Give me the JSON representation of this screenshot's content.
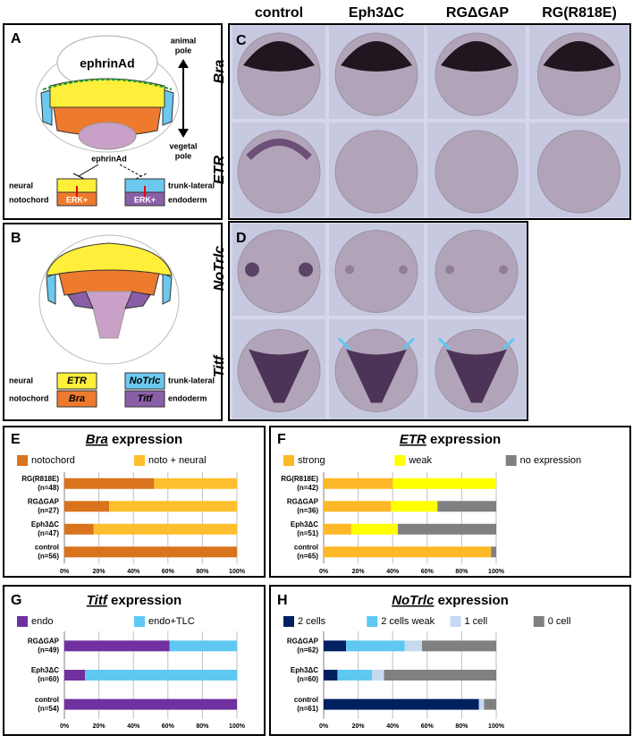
{
  "panel_labels": [
    "A",
    "B",
    "C",
    "D"
  ],
  "panel_a": {
    "ephrin_label": "ephrinAd",
    "animal_pole": [
      "animal",
      "pole"
    ],
    "vegetal_pole": [
      "vegetal",
      "pole"
    ],
    "inhibitor": "ephrinAd",
    "neural": "neural",
    "trunk_lateral": "trunk-lateral",
    "notochord": "notochord",
    "endoderm": "endoderm",
    "erk": [
      "ERK+",
      "ERK+"
    ]
  },
  "panel_b": {
    "genes": [
      "ETR",
      "NoTrlc",
      "Bra",
      "Titf"
    ],
    "neural": "neural",
    "trunk_lateral": "trunk-lateral",
    "notochord": "notochord",
    "endoderm": "endoderm"
  },
  "photos": {
    "columns": [
      "control",
      "Eph3ΔC",
      "RGΔGAP",
      "RG(R818E)"
    ],
    "rows": [
      "Bra",
      "ETR",
      "NoTrlc",
      "Titf"
    ]
  },
  "chart_data": [
    {
      "type": "bar",
      "panel": "E",
      "title_gene": "Bra",
      "title_suffix": " expression",
      "categories": [
        "RG(R818E)",
        "RGΔGAP",
        "Eph3ΔC",
        "control"
      ],
      "category_counts": [
        "(n=48)",
        "(n=27)",
        "(n=47)",
        "(n=56)"
      ],
      "series": [
        {
          "name": "notochord",
          "color": "#d9731c",
          "values": [
            52,
            26,
            17,
            100
          ]
        },
        {
          "name": "noto + neural",
          "color": "#fdbf2d",
          "values": [
            48,
            74,
            83,
            0
          ]
        }
      ],
      "xlim": [
        0,
        100
      ],
      "xticks": [
        {
          "value": 0,
          "label": "0%"
        },
        {
          "value": 20,
          "label": "20%"
        },
        {
          "value": 40,
          "label": "40%"
        },
        {
          "value": 60,
          "label": "60%"
        },
        {
          "value": 80,
          "label": "80%"
        },
        {
          "value": 100,
          "label": "100%"
        }
      ],
      "grid": true,
      "stacked": true
    },
    {
      "type": "bar",
      "panel": "F",
      "title_gene": "ETR",
      "title_suffix": " expression",
      "categories": [
        "RG(R818E)",
        "RGΔGAP",
        "Eph3ΔC",
        "control"
      ],
      "category_counts": [
        "(n=42)",
        "(n=36)",
        "(n=51)",
        "(n=65)"
      ],
      "series": [
        {
          "name": "strong",
          "color": "#fdb827",
          "values": [
            40,
            39,
            16,
            97
          ]
        },
        {
          "name": "weak",
          "color": "#ffff00",
          "values": [
            60,
            27,
            27,
            0
          ]
        },
        {
          "name": "no expression",
          "color": "#808080",
          "values": [
            0,
            34,
            57,
            3
          ]
        }
      ],
      "xlim": [
        0,
        100
      ],
      "xticks": [
        {
          "value": 0,
          "label": "0%"
        },
        {
          "value": 20,
          "label": "20%"
        },
        {
          "value": 40,
          "label": "40%"
        },
        {
          "value": 60,
          "label": "60%"
        },
        {
          "value": 80,
          "label": "80%"
        },
        {
          "value": 100,
          "label": "100%"
        }
      ],
      "grid": true,
      "stacked": true
    },
    {
      "type": "bar",
      "panel": "G",
      "title_gene": "Titf",
      "title_suffix": " expression",
      "categories": [
        "RGΔGAP",
        "Eph3ΔC",
        "control"
      ],
      "category_counts": [
        "(n=49)",
        "(n=60)",
        "(n=54)"
      ],
      "series": [
        {
          "name": "endo",
          "color": "#7030a0",
          "values": [
            61,
            12,
            100
          ]
        },
        {
          "name": "endo+TLC",
          "color": "#5ec8f2",
          "values": [
            39,
            88,
            0
          ]
        }
      ],
      "xlim": [
        0,
        100
      ],
      "xticks": [
        {
          "value": 0,
          "label": "0%"
        },
        {
          "value": 20,
          "label": "20%"
        },
        {
          "value": 40,
          "label": "40%"
        },
        {
          "value": 60,
          "label": "60%"
        },
        {
          "value": 80,
          "label": "80%"
        },
        {
          "value": 100,
          "label": "100%"
        }
      ],
      "grid": true,
      "stacked": true
    },
    {
      "type": "bar",
      "panel": "H",
      "title_gene": "NoTrlc",
      "title_suffix": " expression",
      "categories": [
        "RGΔGAP",
        "Eph3ΔC",
        "control"
      ],
      "category_counts": [
        "(n=62)",
        "(n=60)",
        "(n=61)"
      ],
      "series": [
        {
          "name": "2 cells",
          "color": "#002060",
          "values": [
            13,
            8,
            90
          ]
        },
        {
          "name": "2 cells weak",
          "color": "#5ec8f2",
          "values": [
            34,
            20,
            0
          ]
        },
        {
          "name": "1 cell",
          "color": "#c5d9f1",
          "values": [
            10,
            7,
            3
          ]
        },
        {
          "name": "0 cell",
          "color": "#808080",
          "values": [
            43,
            65,
            7
          ]
        }
      ],
      "xlim": [
        0,
        100
      ],
      "xticks": [
        {
          "value": 0,
          "label": "0%"
        },
        {
          "value": 20,
          "label": "20%"
        },
        {
          "value": 40,
          "label": "40%"
        },
        {
          "value": 60,
          "label": "60%"
        },
        {
          "value": 80,
          "label": "80%"
        },
        {
          "value": 100,
          "label": "100%"
        }
      ],
      "grid": true,
      "stacked": true
    }
  ]
}
